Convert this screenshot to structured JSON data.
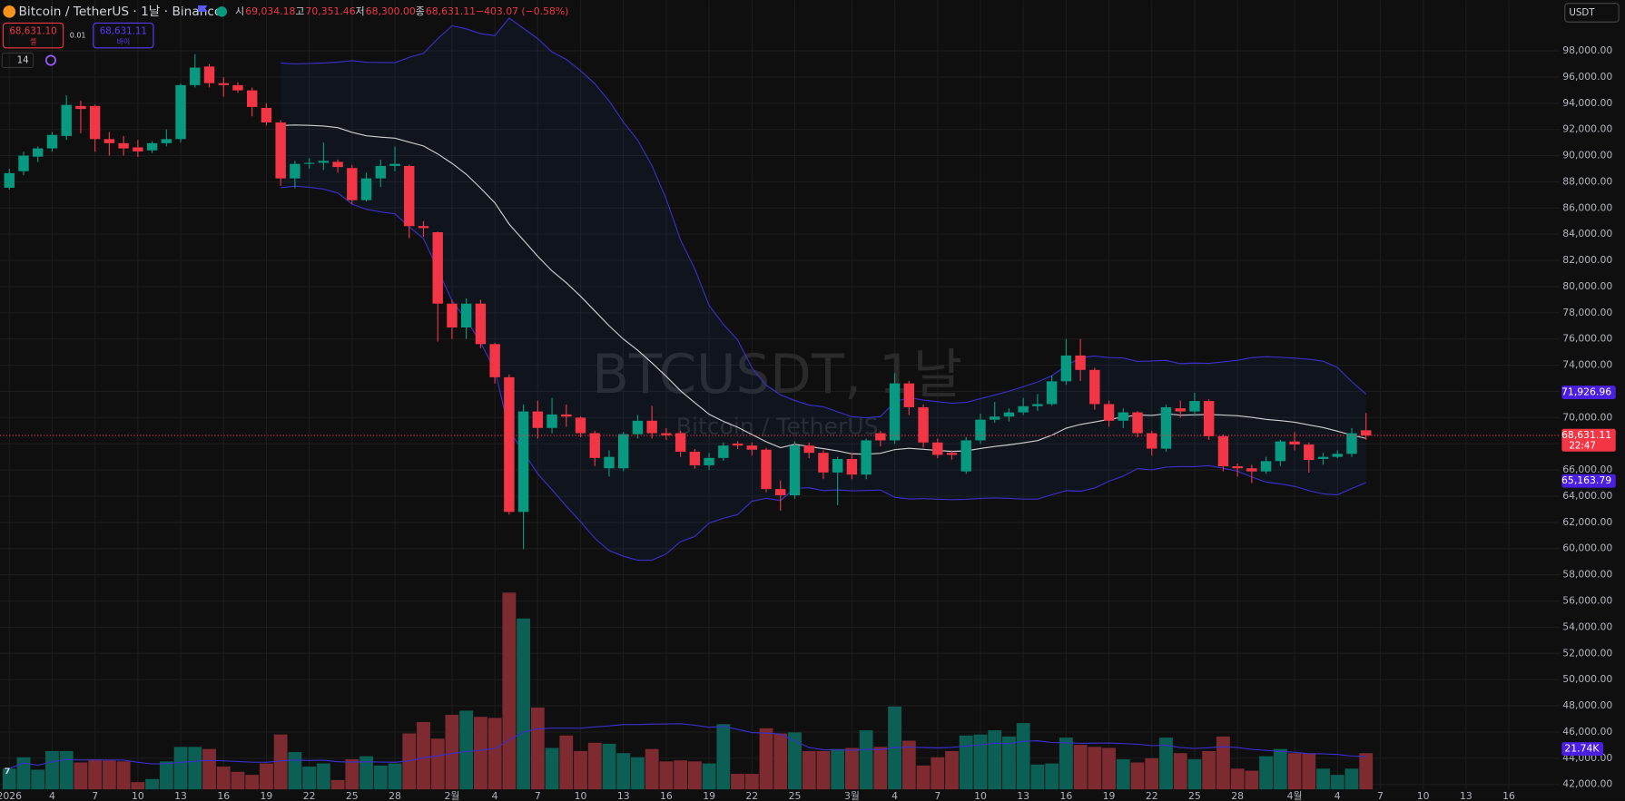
{
  "header": {
    "symbol": "Bitcoin / TetherUS · 1날 · Binance",
    "ohlc": [
      {
        "key": "시",
        "value": "69,034.18"
      },
      {
        "key": "고",
        "value": "70,351.46"
      },
      {
        "key": "저",
        "value": "68,300.00"
      },
      {
        "key": "종",
        "value": "68,631.11"
      }
    ],
    "change": "−403.07 (−0.58%)"
  },
  "trade": {
    "sell_price": "68,631.10",
    "sell": "셀",
    "spread": "0.01",
    "buy_price": "68,631.11",
    "buy": "바이"
  },
  "interval_count": "14",
  "currency": "USDT",
  "watermark": {
    "symbol": "BTCUSDT, 1날",
    "name": "Bitcoin / TetherUS"
  },
  "chart_data": {
    "type": "candlestick",
    "up_color": "#089981",
    "down_color": "#f23645",
    "grid": true,
    "x": [
      "2026-01-01",
      "2026-01-02",
      "2026-01-03",
      "2026-01-04",
      "2026-01-05",
      "2026-01-06",
      "2026-01-07",
      "2026-01-08",
      "2026-01-09",
      "2026-01-10",
      "2026-01-11",
      "2026-01-12",
      "2026-01-13",
      "2026-01-14",
      "2026-01-15",
      "2026-01-16",
      "2026-01-17",
      "2026-01-18",
      "2026-01-19",
      "2026-01-20",
      "2026-01-21",
      "2026-01-22",
      "2026-01-23",
      "2026-01-24",
      "2026-01-25",
      "2026-01-26",
      "2026-01-27",
      "2026-01-28",
      "2026-01-29",
      "2026-01-30",
      "2026-01-31",
      "2026-02-01",
      "2026-02-02",
      "2026-02-03",
      "2026-02-04",
      "2026-02-05",
      "2026-02-06",
      "2026-02-07",
      "2026-02-08",
      "2026-02-09",
      "2026-02-10",
      "2026-02-11",
      "2026-02-12",
      "2026-02-13",
      "2026-02-14",
      "2026-02-15",
      "2026-02-16",
      "2026-02-17",
      "2026-02-18",
      "2026-02-19",
      "2026-02-20",
      "2026-02-21",
      "2026-02-22",
      "2026-02-23",
      "2026-02-24",
      "2026-02-25",
      "2026-02-26",
      "2026-02-27",
      "2026-02-28",
      "2026-03-01",
      "2026-03-02",
      "2026-03-03",
      "2026-03-04",
      "2026-03-05",
      "2026-03-06",
      "2026-03-07",
      "2026-03-08",
      "2026-03-09",
      "2026-03-10",
      "2026-03-11",
      "2026-03-12",
      "2026-03-13",
      "2026-03-14",
      "2026-03-15",
      "2026-03-16",
      "2026-03-17",
      "2026-03-18",
      "2026-03-19",
      "2026-03-20",
      "2026-03-21",
      "2026-03-22",
      "2026-03-23",
      "2026-03-24",
      "2026-03-25",
      "2026-03-26",
      "2026-03-27",
      "2026-03-28",
      "2026-03-29",
      "2026-03-30",
      "2026-03-31",
      "2026-04-01",
      "2026-04-02",
      "2026-04-03",
      "2026-04-04",
      "2026-04-05",
      "2026-04-06"
    ],
    "open": [
      87550,
      88810,
      89920,
      90550,
      91500,
      93790,
      93790,
      91260,
      90950,
      90630,
      90400,
      90950,
      91260,
      95380,
      96800,
      95530,
      95380,
      94980,
      93640,
      92530,
      88260,
      89370,
      89450,
      89525,
      89050,
      86600,
      88260,
      89210,
      89210,
      84620,
      84150,
      78700,
      76880,
      78700,
      75610,
      73080,
      62800,
      70470,
      69210,
      70240,
      70000,
      68810,
      66130,
      66130,
      68735,
      69760,
      68810,
      68810,
      67390,
      66360,
      66920,
      68020,
      67865,
      67550,
      64545,
      64070,
      67865,
      67310,
      65810,
      66840,
      65650,
      68810,
      68260,
      72610,
      70790,
      68100,
      67310,
      65890,
      68260,
      69840,
      70080,
      70400,
      70870,
      71030,
      72770,
      74740,
      73640,
      71030,
      69760,
      70400,
      68810,
      67630,
      70710,
      70470,
      71265,
      68580,
      66285,
      66130,
      65890,
      66680,
      68180,
      67945,
      66840,
      67000,
      67235,
      69034.18
    ],
    "high": [
      89000,
      90300,
      90700,
      91800,
      94600,
      94200,
      93900,
      91800,
      91500,
      91200,
      91100,
      92000,
      95500,
      97750,
      97000,
      96000,
      95600,
      95200,
      94000,
      92700,
      89600,
      89800,
      91000,
      89700,
      89300,
      88700,
      89700,
      90700,
      89300,
      85000,
      84200,
      79000,
      79100,
      79000,
      75700,
      73300,
      71000,
      71300,
      71500,
      71000,
      70100,
      69000,
      67500,
      68900,
      70200,
      70900,
      69200,
      69000,
      67600,
      67300,
      68100,
      68200,
      68100,
      67700,
      65200,
      68200,
      68100,
      67500,
      67000,
      67300,
      68400,
      69000,
      73400,
      72800,
      71000,
      68400,
      67500,
      68500,
      70300,
      71200,
      70700,
      71500,
      71800,
      73200,
      76000,
      76000,
      73800,
      71300,
      70700,
      70500,
      69000,
      71000,
      71300,
      71900,
      71400,
      68700,
      66500,
      66400,
      67000,
      68300,
      68900,
      68100,
      67300,
      67500,
      69200,
      70351.46
    ],
    "low": [
      87400,
      88500,
      89500,
      90300,
      91200,
      91700,
      90300,
      90000,
      90000,
      89900,
      90200,
      90700,
      91000,
      95200,
      95200,
      94500,
      94800,
      93000,
      92300,
      87700,
      87500,
      89000,
      88900,
      88700,
      86300,
      86500,
      87600,
      88800,
      83700,
      83800,
      75800,
      76000,
      76000,
      75300,
      72600,
      62600,
      59960,
      68400,
      68800,
      69300,
      68500,
      66300,
      65500,
      65900,
      68400,
      68400,
      68300,
      67000,
      66100,
      66000,
      66700,
      67600,
      67100,
      64300,
      62900,
      63800,
      66900,
      65300,
      63300,
      65300,
      65300,
      67800,
      68000,
      70200,
      67700,
      66900,
      66800,
      65700,
      68000,
      69600,
      69700,
      70200,
      70500,
      70900,
      72500,
      72800,
      70600,
      69300,
      69200,
      68500,
      67100,
      67400,
      70000,
      70100,
      68300,
      65900,
      65500,
      65000,
      65700,
      66300,
      67500,
      65800,
      66400,
      66900,
      67000,
      68300
    ],
    "close": [
      88660,
      90000,
      90550,
      91580,
      93870,
      93560,
      91260,
      90950,
      90550,
      90320,
      90950,
      91260,
      95380,
      96720,
      95530,
      95380,
      94980,
      93715,
      92530,
      88260,
      89370,
      89450,
      89600,
      89130,
      86600,
      88260,
      89210,
      89370,
      84620,
      84470,
      78700,
      76880,
      78700,
      75610,
      73080,
      62800,
      70470,
      69210,
      70240,
      70080,
      68810,
      66920,
      67000,
      68735,
      69760,
      68810,
      68655,
      67390,
      66360,
      66920,
      67865,
      67865,
      67550,
      64545,
      64070,
      67865,
      67310,
      65810,
      66840,
      65650,
      68260,
      68260,
      72610,
      70790,
      68100,
      67155,
      67155,
      68260,
      69840,
      70080,
      70400,
      70870,
      71030,
      72770,
      74740,
      73640,
      71030,
      69760,
      70400,
      68810,
      67630,
      70790,
      70470,
      71265,
      68580,
      66285,
      66130,
      65890,
      66680,
      68180,
      67945,
      66760,
      67000,
      67235,
      68810,
      68631.11
    ],
    "volume": [
      11140,
      17270,
      10580,
      20610,
      20610,
      14480,
      16150,
      15600,
      15040,
      3900,
      5570,
      15040,
      22840,
      22840,
      21720,
      12250,
      9470,
      7800,
      13930,
      29520,
      20050,
      12250,
      13930,
      5010,
      16150,
      17820,
      12810,
      13930,
      30080,
      36210,
      27290,
      40100,
      42330,
      38990,
      38430,
      105830,
      91910,
      44000,
      22280,
      28960,
      20610,
      25070,
      24510,
      19500,
      17270,
      21720,
      15040,
      15600,
      15040,
      13930,
      35090,
      8360,
      8360,
      32860,
      30080,
      30640,
      20610,
      20610,
      21720,
      22280,
      31750,
      22840,
      44560,
      26180,
      12810,
      17270,
      20610,
      28960,
      29520,
      31750,
      28410,
      35650,
      13370,
      13930,
      27850,
      23950,
      22840,
      22280,
      16150,
      14480,
      16710,
      27850,
      19500,
      16150,
      20610,
      28410,
      11140,
      10030,
      17820,
      21720,
      19500,
      19500,
      11140,
      7800,
      11140,
      19500
    ],
    "ylim": [
      41620,
      101860
    ],
    "yticks": [
      {
        "value": 42000,
        "label": "42,000.00"
      },
      {
        "value": 44000,
        "label": "44,000.00"
      },
      {
        "value": 46000,
        "label": "46,000.00"
      },
      {
        "value": 48000,
        "label": "48,000.00"
      },
      {
        "value": 50000,
        "label": "50,000.00"
      },
      {
        "value": 52000,
        "label": "52,000.00"
      },
      {
        "value": 54000,
        "label": "54,000.00"
      },
      {
        "value": 56000,
        "label": "56,000.00"
      },
      {
        "value": 58000,
        "label": "58,000.00"
      },
      {
        "value": 60000,
        "label": "60,000.00"
      },
      {
        "value": 62000,
        "label": "62,000.00"
      },
      {
        "value": 64000,
        "label": "64,000.00"
      },
      {
        "value": 66000,
        "label": "66,000.00"
      },
      {
        "value": 68000,
        "label": "68,000.00"
      },
      {
        "value": 70000,
        "label": "70,000.00"
      },
      {
        "value": 72000,
        "label": "72,000.00"
      },
      {
        "value": 74000,
        "label": "74,000.00"
      },
      {
        "value": 76000,
        "label": "76,000.00"
      },
      {
        "value": 78000,
        "label": "78,000.00"
      },
      {
        "value": 80000,
        "label": "80,000.00"
      },
      {
        "value": 82000,
        "label": "82,000.00"
      },
      {
        "value": 84000,
        "label": "84,000.00"
      },
      {
        "value": 86000,
        "label": "86,000.00"
      },
      {
        "value": 88000,
        "label": "88,000.00"
      },
      {
        "value": 90000,
        "label": "90,000.00"
      },
      {
        "value": 92000,
        "label": "92,000.00"
      },
      {
        "value": 94000,
        "label": "94,000.00"
      },
      {
        "value": 96000,
        "label": "96,000.00"
      },
      {
        "value": 98000,
        "label": "98,000.00"
      }
    ],
    "xticks": [
      {
        "value": "2026-01-01",
        "label": "2026"
      },
      {
        "value": "2026-01-04",
        "label": "4"
      },
      {
        "value": "2026-01-07",
        "label": "7"
      },
      {
        "value": "2026-01-10",
        "label": "10"
      },
      {
        "value": "2026-01-13",
        "label": "13"
      },
      {
        "value": "2026-01-16",
        "label": "16"
      },
      {
        "value": "2026-01-19",
        "label": "19"
      },
      {
        "value": "2026-01-22",
        "label": "22"
      },
      {
        "value": "2026-01-25",
        "label": "25"
      },
      {
        "value": "2026-01-28",
        "label": "28"
      },
      {
        "value": "2026-02-01",
        "label": "2월"
      },
      {
        "value": "2026-02-04",
        "label": "4"
      },
      {
        "value": "2026-02-07",
        "label": "7"
      },
      {
        "value": "2026-02-10",
        "label": "10"
      },
      {
        "value": "2026-02-13",
        "label": "13"
      },
      {
        "value": "2026-02-16",
        "label": "16"
      },
      {
        "value": "2026-02-19",
        "label": "19"
      },
      {
        "value": "2026-02-22",
        "label": "22"
      },
      {
        "value": "2026-02-25",
        "label": "25"
      },
      {
        "value": "2026-03-01",
        "label": "3월"
      },
      {
        "value": "2026-03-04",
        "label": "4"
      },
      {
        "value": "2026-03-07",
        "label": "7"
      },
      {
        "value": "2026-03-10",
        "label": "10"
      },
      {
        "value": "2026-03-13",
        "label": "13"
      },
      {
        "value": "2026-03-16",
        "label": "16"
      },
      {
        "value": "2026-03-19",
        "label": "19"
      },
      {
        "value": "2026-03-22",
        "label": "22"
      },
      {
        "value": "2026-03-25",
        "label": "25"
      },
      {
        "value": "2026-03-28",
        "label": "28"
      },
      {
        "value": "2026-04-01",
        "label": "4월"
      },
      {
        "value": "2026-04-04",
        "label": "4"
      },
      {
        "value": "2026-04-07",
        "label": "7"
      },
      {
        "value": "2026-04-10",
        "label": "10"
      },
      {
        "value": "2026-04-13",
        "label": "13"
      },
      {
        "value": "2026-04-16",
        "label": "16"
      }
    ],
    "band_upper_label": {
      "value": 71926.96,
      "label": "71,926.96"
    },
    "band_lower_label": {
      "value": 65163.79,
      "label": "65,163.79"
    },
    "last_price": {
      "value": 68631.11,
      "label": "68,631.11"
    },
    "countdown": "22:47",
    "volume_ma_label": {
      "value": 21740,
      "label": "21.74K"
    }
  }
}
